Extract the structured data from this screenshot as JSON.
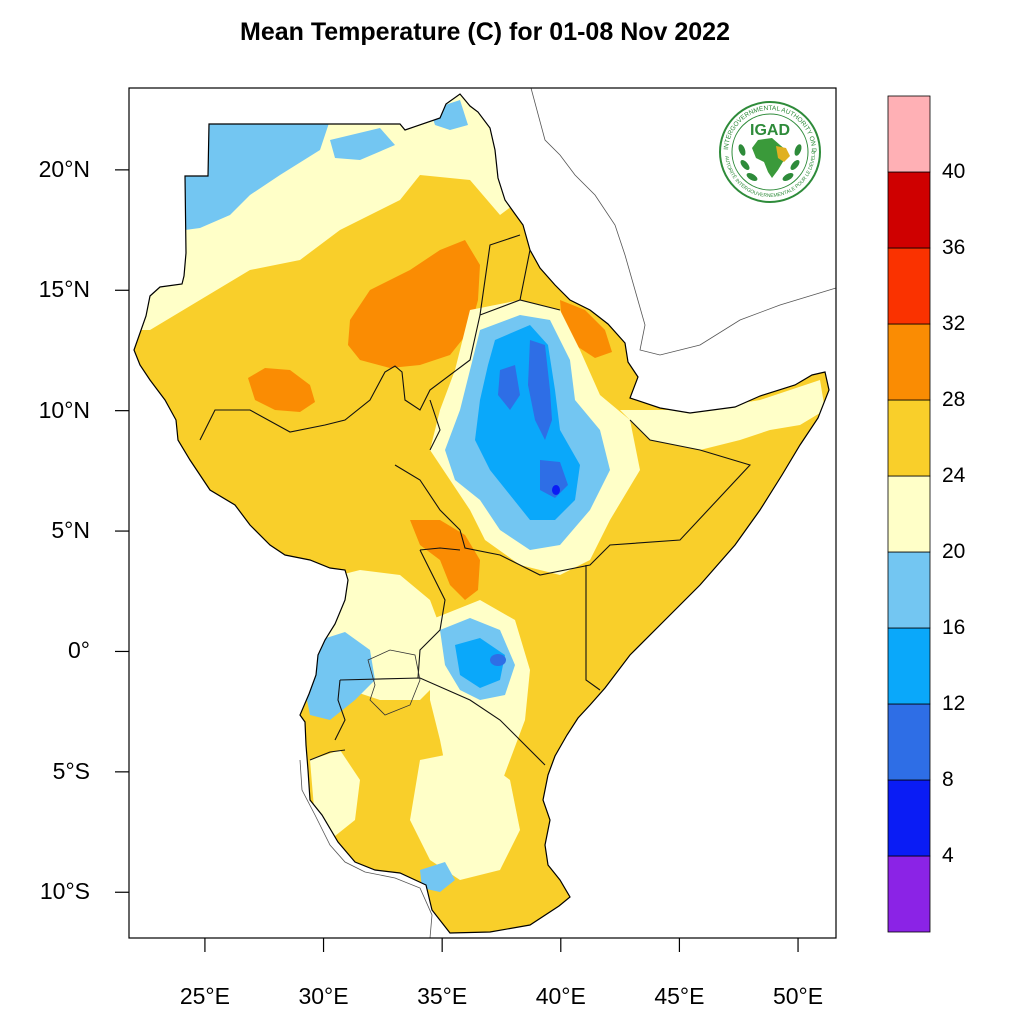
{
  "title": "Mean Temperature (C) for 01-08 Nov 2022",
  "logo": {
    "text": "IGAD",
    "ring_top": "INTERGOVERNMENTAL AUTHORITY ON DEVELOPMENT",
    "ring_bottom": "AUTORITÉ INTERGOUVERNEMENTALE POUR LE DÉVELOPPEMENT"
  },
  "map": {
    "lon_range": [
      21.8,
      51.6
    ],
    "lat_range": [
      -11.9,
      23.4
    ],
    "lat_ticks": [
      {
        "value": 20,
        "label": "20°N"
      },
      {
        "value": 15,
        "label": "15°N"
      },
      {
        "value": 10,
        "label": "10°N"
      },
      {
        "value": 5,
        "label": "5°N"
      },
      {
        "value": 0,
        "label": "0°"
      },
      {
        "value": -5,
        "label": "5°S"
      },
      {
        "value": -10,
        "label": "10°S"
      }
    ],
    "lon_ticks": [
      {
        "value": 25,
        "label": "25°E"
      },
      {
        "value": 30,
        "label": "30°E"
      },
      {
        "value": 35,
        "label": "35°E"
      },
      {
        "value": 40,
        "label": "40°E"
      },
      {
        "value": 45,
        "label": "45°E"
      },
      {
        "value": 50,
        "label": "50°E"
      }
    ]
  },
  "colorbar": {
    "colors": [
      "#8b23e6",
      "#0a1cf5",
      "#2e6ee6",
      "#0aa8fa",
      "#73c6f2",
      "#ffffc8",
      "#f9cf2a",
      "#fa8c03",
      "#fa3200",
      "#cf0000",
      "#ffb0b5"
    ],
    "labels": [
      "4",
      "8",
      "12",
      "16",
      "20",
      "24",
      "28",
      "32",
      "36",
      "40"
    ]
  },
  "colors": {
    "very_cool": "#0a1cf5",
    "cool": "#2e6ee6",
    "mild_cool": "#0aa8fa",
    "light_blue": "#73c6f2",
    "pale": "#ffffc8",
    "warm": "#f9cf2a",
    "hot": "#fa8c03"
  }
}
